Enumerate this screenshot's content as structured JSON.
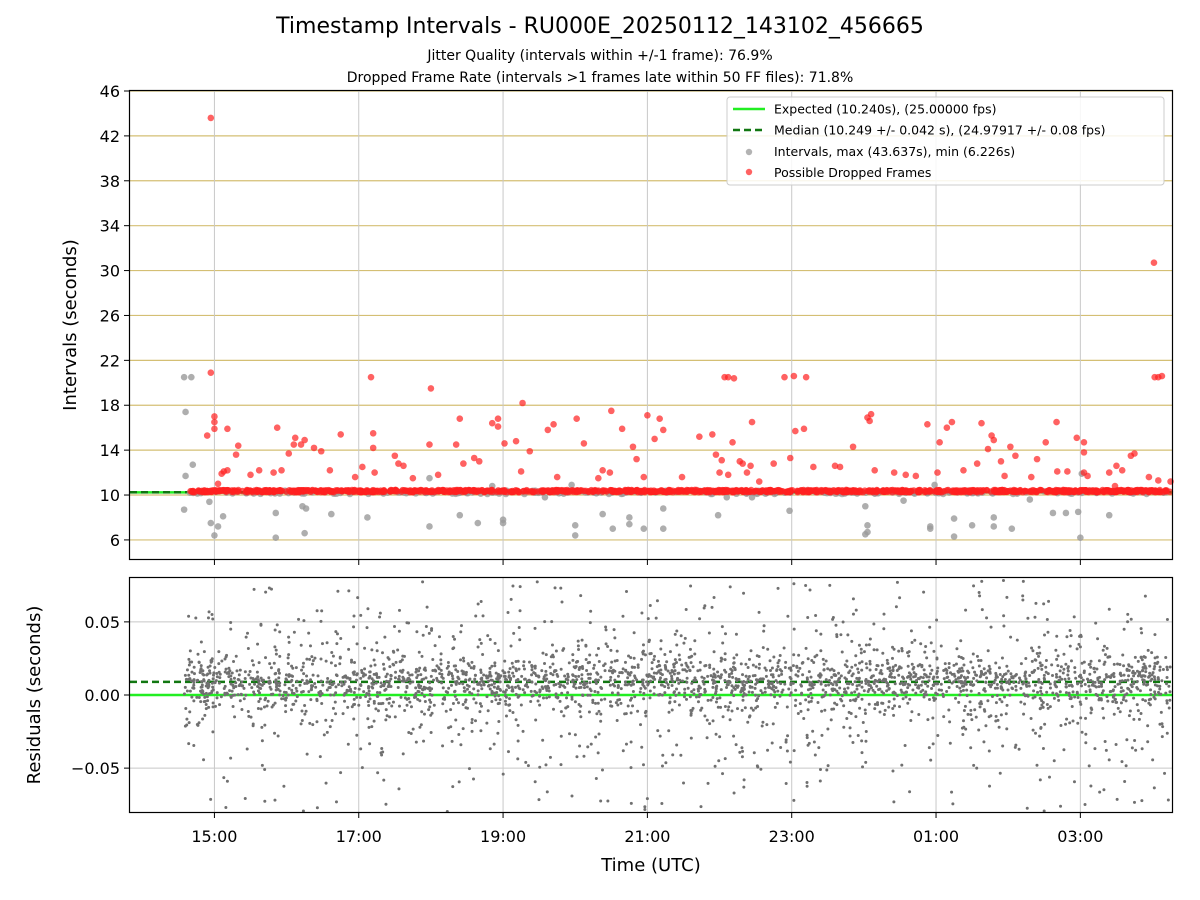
{
  "colors": {
    "expected": "#22ee22",
    "median": "#117711",
    "intervals": "#9a9a9a",
    "dropped": "#ff2020",
    "residuals": "#707070",
    "hgrid_top": "#d4bf74",
    "vgrid": "#c8c8c8"
  },
  "chart_data": [
    {
      "type": "scatter",
      "title": "Timestamp Intervals - RU000E_20250112_143102_456665",
      "subtitle1": "Jitter Quality (intervals within +/-1 frame): 76.9%",
      "subtitle2": "Dropped Frame Rate (intervals >1 frames late within 50 FF files): 71.8%",
      "ylabel": "Intervals (seconds)",
      "xlim_hours": [
        13.83,
        28.27
      ],
      "ylim": [
        4.3,
        46
      ],
      "yticks": [
        "6",
        "10",
        "14",
        "18",
        "22",
        "26",
        "30",
        "34",
        "38",
        "42",
        "46"
      ],
      "xticks": [
        "15:00",
        "17:00",
        "19:00",
        "21:00",
        "23:00",
        "01:00",
        "03:00"
      ],
      "expected": 10.24,
      "median": 10.249,
      "legend_position": "top-right",
      "legend": [
        "Expected (10.240s), (25.00000 fps)",
        "Median (10.249 +/- 0.042 s), (24.97917 +/- 0.08 fps)",
        "Intervals, max (43.637s), min (6.226s)",
        "Possible Dropped Frames"
      ],
      "series": [
        {
          "name": "Intervals, max (43.637s), min (6.226s)",
          "x_range": [
            "14:35",
            "04:15"
          ],
          "typical": 10.24,
          "outliers": [
            [
              14.58,
              20.5
            ],
            [
              14.68,
              20.5
            ],
            [
              14.6,
              17.4
            ],
            [
              14.6,
              11.7
            ],
            [
              14.58,
              8.7
            ],
            [
              14.7,
              12.7
            ],
            [
              14.93,
              9.4
            ],
            [
              14.95,
              7.5
            ],
            [
              15.0,
              6.4
            ],
            [
              15.05,
              7.2
            ],
            [
              15.12,
              8.1
            ],
            [
              15.85,
              6.2
            ],
            [
              15.85,
              8.4
            ],
            [
              16.22,
              9.0
            ],
            [
              16.25,
              6.6
            ],
            [
              16.27,
              8.8
            ],
            [
              16.62,
              8.3
            ],
            [
              17.12,
              8.0
            ],
            [
              17.98,
              11.5
            ],
            [
              17.98,
              7.2
            ],
            [
              18.4,
              8.2
            ],
            [
              18.65,
              7.5
            ],
            [
              18.85,
              10.8
            ],
            [
              19.0,
              7.5
            ],
            [
              19.0,
              7.8
            ],
            [
              19.58,
              9.8
            ],
            [
              19.95,
              10.9
            ],
            [
              20.0,
              6.4
            ],
            [
              20.0,
              7.3
            ],
            [
              20.38,
              8.3
            ],
            [
              20.52,
              7.0
            ],
            [
              20.75,
              8.0
            ],
            [
              20.75,
              7.4
            ],
            [
              20.95,
              7.0
            ],
            [
              21.22,
              8.8
            ],
            [
              21.22,
              7.0
            ],
            [
              21.98,
              8.2
            ],
            [
              22.1,
              9.8
            ],
            [
              22.97,
              8.6
            ],
            [
              22.45,
              9.8
            ],
            [
              24.02,
              9.0
            ],
            [
              24.02,
              6.5
            ],
            [
              24.05,
              6.7
            ],
            [
              24.05,
              7.3
            ],
            [
              24.55,
              9.5
            ],
            [
              24.92,
              7.2
            ],
            [
              24.92,
              7.0
            ],
            [
              25.25,
              7.9
            ],
            [
              25.25,
              6.3
            ],
            [
              25.5,
              7.3
            ],
            [
              25.8,
              8.0
            ],
            [
              25.8,
              7.2
            ],
            [
              26.05,
              7.0
            ],
            [
              26.3,
              9.6
            ],
            [
              26.62,
              8.4
            ],
            [
              26.8,
              8.4
            ],
            [
              26.97,
              8.5
            ],
            [
              27.0,
              6.2
            ],
            [
              27.4,
              8.2
            ],
            [
              27.02,
              11.9
            ],
            [
              24.98,
              10.9
            ]
          ]
        },
        {
          "name": "Possible Dropped Frames",
          "x_range": [
            "14:40",
            "04:15"
          ],
          "band": [
            10.25,
            10.45
          ],
          "outliers": [
            [
              14.95,
              43.6
            ],
            [
              14.95,
              20.9
            ],
            [
              14.9,
              15.3
            ],
            [
              15.0,
              17.0
            ],
            [
              15.0,
              16.5
            ],
            [
              15.0,
              15.9
            ],
            [
              15.18,
              15.9
            ],
            [
              15.05,
              11.0
            ],
            [
              15.1,
              11.9
            ],
            [
              15.13,
              12.1
            ],
            [
              15.18,
              12.2
            ],
            [
              15.3,
              13.6
            ],
            [
              15.33,
              14.4
            ],
            [
              15.5,
              11.8
            ],
            [
              15.62,
              12.2
            ],
            [
              15.82,
              12.0
            ],
            [
              15.87,
              16.0
            ],
            [
              15.93,
              12.2
            ],
            [
              16.03,
              13.7
            ],
            [
              16.1,
              14.5
            ],
            [
              16.12,
              15.1
            ],
            [
              16.2,
              14.5
            ],
            [
              16.25,
              14.9
            ],
            [
              16.38,
              14.2
            ],
            [
              16.48,
              13.9
            ],
            [
              16.6,
              12.2
            ],
            [
              16.75,
              15.4
            ],
            [
              16.95,
              11.6
            ],
            [
              17.05,
              12.5
            ],
            [
              17.17,
              20.5
            ],
            [
              17.2,
              15.5
            ],
            [
              17.2,
              14.2
            ],
            [
              17.22,
              12.0
            ],
            [
              17.5,
              13.5
            ],
            [
              17.55,
              12.8
            ],
            [
              17.62,
              12.6
            ],
            [
              17.75,
              11.5
            ],
            [
              17.98,
              14.5
            ],
            [
              18.0,
              19.5
            ],
            [
              18.1,
              11.8
            ],
            [
              18.35,
              14.5
            ],
            [
              18.4,
              16.8
            ],
            [
              18.45,
              12.8
            ],
            [
              18.6,
              13.3
            ],
            [
              18.67,
              13.0
            ],
            [
              18.85,
              16.4
            ],
            [
              18.93,
              16.8
            ],
            [
              18.93,
              16.1
            ],
            [
              19.02,
              14.6
            ],
            [
              19.18,
              14.8
            ],
            [
              19.27,
              18.2
            ],
            [
              19.25,
              12.1
            ],
            [
              19.37,
              13.9
            ],
            [
              19.62,
              15.8
            ],
            [
              19.7,
              16.3
            ],
            [
              19.75,
              11.6
            ],
            [
              20.02,
              16.8
            ],
            [
              20.12,
              14.6
            ],
            [
              20.32,
              11.5
            ],
            [
              20.38,
              12.2
            ],
            [
              20.48,
              12.0
            ],
            [
              20.5,
              17.5
            ],
            [
              20.65,
              15.9
            ],
            [
              20.8,
              14.3
            ],
            [
              20.85,
              13.2
            ],
            [
              20.95,
              11.6
            ],
            [
              21.0,
              17.1
            ],
            [
              21.1,
              15.0
            ],
            [
              21.17,
              16.8
            ],
            [
              21.22,
              15.8
            ],
            [
              21.48,
              11.6
            ],
            [
              21.72,
              15.2
            ],
            [
              21.9,
              15.4
            ],
            [
              21.95,
              13.6
            ],
            [
              22.03,
              13.1
            ],
            [
              22.0,
              12.0
            ],
            [
              22.07,
              20.5
            ],
            [
              22.12,
              20.5
            ],
            [
              22.2,
              20.4
            ],
            [
              22.18,
              14.7
            ],
            [
              22.12,
              11.8
            ],
            [
              22.28,
              13.0
            ],
            [
              22.32,
              12.8
            ],
            [
              22.38,
              12.0
            ],
            [
              22.43,
              12.6
            ],
            [
              22.45,
              16.5
            ],
            [
              22.55,
              11.2
            ],
            [
              22.75,
              12.8
            ],
            [
              22.9,
              20.5
            ],
            [
              22.98,
              13.3
            ],
            [
              23.03,
              20.6
            ],
            [
              23.05,
              15.7
            ],
            [
              23.17,
              15.9
            ],
            [
              23.2,
              20.5
            ],
            [
              23.3,
              12.5
            ],
            [
              23.6,
              12.6
            ],
            [
              23.67,
              12.5
            ],
            [
              23.85,
              14.3
            ],
            [
              24.05,
              16.9
            ],
            [
              24.08,
              16.6
            ],
            [
              24.1,
              17.2
            ],
            [
              24.15,
              12.2
            ],
            [
              24.42,
              12.0
            ],
            [
              24.58,
              11.8
            ],
            [
              24.72,
              11.7
            ],
            [
              24.88,
              16.3
            ],
            [
              25.02,
              12.0
            ],
            [
              25.05,
              14.7
            ],
            [
              25.15,
              16.0
            ],
            [
              25.22,
              16.5
            ],
            [
              25.38,
              12.2
            ],
            [
              25.57,
              12.8
            ],
            [
              25.63,
              16.4
            ],
            [
              25.72,
              14.1
            ],
            [
              25.77,
              15.3
            ],
            [
              25.8,
              14.9
            ],
            [
              25.9,
              13.0
            ],
            [
              25.95,
              11.7
            ],
            [
              26.03,
              14.3
            ],
            [
              26.1,
              13.5
            ],
            [
              26.32,
              11.6
            ],
            [
              26.4,
              13.2
            ],
            [
              26.52,
              14.7
            ],
            [
              26.67,
              16.5
            ],
            [
              26.68,
              12.1
            ],
            [
              26.82,
              12.1
            ],
            [
              26.95,
              15.1
            ],
            [
              27.05,
              14.7
            ],
            [
              27.05,
              13.8
            ],
            [
              27.05,
              12.0
            ],
            [
              27.1,
              11.7
            ],
            [
              27.4,
              12.0
            ],
            [
              27.5,
              12.6
            ],
            [
              27.58,
              12.2
            ],
            [
              27.7,
              13.5
            ],
            [
              27.75,
              13.7
            ],
            [
              27.95,
              11.6
            ],
            [
              28.02,
              30.7
            ],
            [
              28.03,
              20.5
            ],
            [
              28.08,
              20.5
            ],
            [
              28.13,
              20.6
            ],
            [
              28.08,
              11.3
            ],
            [
              28.25,
              11.2
            ],
            [
              27.48,
              10.8
            ]
          ]
        }
      ]
    },
    {
      "type": "scatter",
      "xlabel": "Time (UTC)",
      "ylabel": "Residuals (seconds)",
      "xlim_hours": [
        13.83,
        28.27
      ],
      "ylim": [
        -0.08,
        0.08
      ],
      "yticks": [
        "−0.05",
        "0.00",
        "0.05"
      ],
      "ytick_values": [
        -0.05,
        0.0,
        0.05
      ],
      "xticks": [
        "15:00",
        "17:00",
        "19:00",
        "21:00",
        "23:00",
        "01:00",
        "03:00"
      ],
      "expected": 0.0,
      "median": 0.009,
      "series": [
        {
          "name": "Residuals",
          "x_range": [
            "14:35",
            "04:15"
          ],
          "spread": "most within ±0.02, tails to ±0.08"
        }
      ]
    }
  ],
  "xtick_hours": [
    15,
    17,
    19,
    21,
    23,
    25,
    27
  ]
}
